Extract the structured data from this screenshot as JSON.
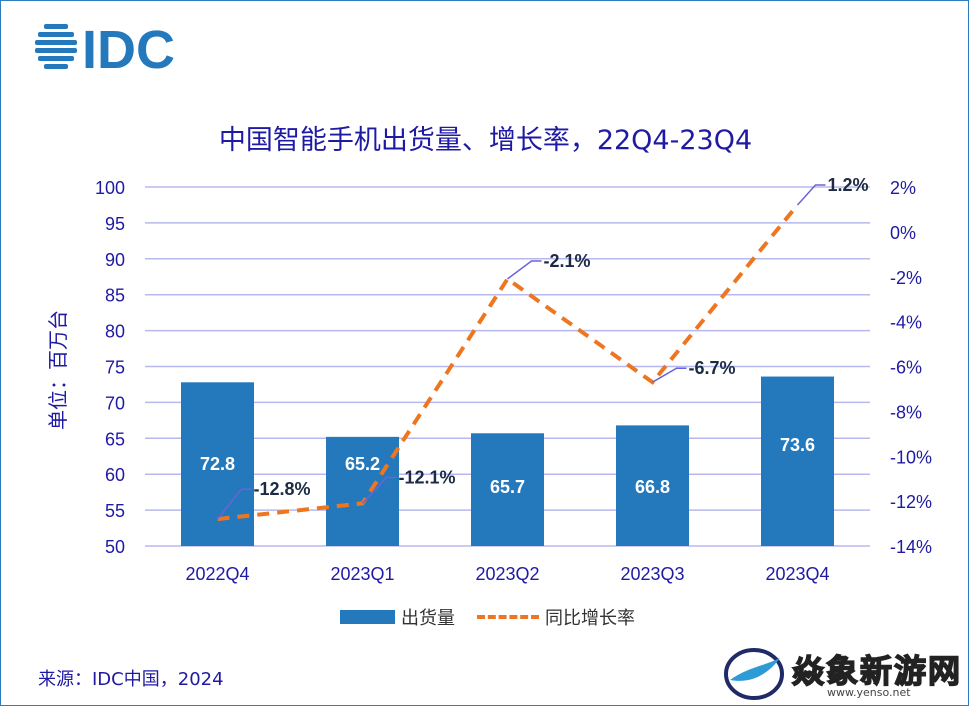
{
  "brand": {
    "logo_text": "IDC",
    "color": "#2479bd"
  },
  "header": {
    "title": "中国智能手机出货量、增长率，22Q4-23Q4"
  },
  "axes": {
    "left_label": "单位：百万台",
    "left_ticks": [
      "100",
      "95",
      "90",
      "85",
      "80",
      "75",
      "70",
      "65",
      "60",
      "55",
      "50"
    ],
    "right_ticks": [
      "2%",
      "0%",
      "-2%",
      "-4%",
      "-6%",
      "-8%",
      "-10%",
      "-12%",
      "-14%"
    ]
  },
  "chart_data": {
    "type": "bar+line",
    "title": "中国智能手机出货量、增长率，22Q4-23Q4",
    "categories": [
      "2022Q4",
      "2023Q1",
      "2023Q2",
      "2023Q3",
      "2023Q4"
    ],
    "series": [
      {
        "name": "出货量",
        "type": "bar",
        "axis": "left",
        "unit": "百万台",
        "values": [
          72.8,
          65.2,
          65.7,
          66.8,
          73.6
        ],
        "labels": [
          "72.8",
          "65.2",
          "65.7",
          "66.8",
          "73.6"
        ],
        "color": "#2479bd"
      },
      {
        "name": "同比增长率",
        "type": "line",
        "axis": "right",
        "style": "dashed",
        "values": [
          -12.8,
          -12.1,
          -2.1,
          -6.7,
          1.2
        ],
        "labels": [
          "-12.8%",
          "-12.1%",
          "-2.1%",
          "-6.7%",
          "1.2%"
        ],
        "color": "#ee7621"
      }
    ],
    "ylim_left": [
      50,
      100
    ],
    "ylim_right": [
      -14,
      2
    ],
    "ylabel": "单位：百万台",
    "grid": true,
    "legend": "bottom-center"
  },
  "legend": {
    "bar_label": "出货量",
    "line_label": "同比增长率"
  },
  "footer": {
    "source": "来源：IDC中国，2024"
  },
  "watermark": {
    "text": "焱象新游网",
    "url": "www.yenso.net"
  }
}
